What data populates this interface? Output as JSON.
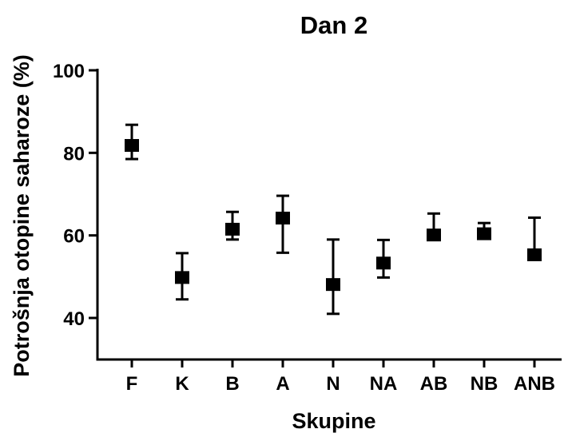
{
  "chart_data": {
    "type": "scatter",
    "title": "Dan 2",
    "xlabel": "Skupine",
    "ylabel": "Potrošnja otopine saharoze (%)",
    "categories": [
      "F",
      "K",
      "B",
      "A",
      "N",
      "NA",
      "AB",
      "NB",
      "ANB"
    ],
    "values": [
      81.8,
      49.8,
      61.5,
      64.2,
      48.1,
      53.3,
      60.1,
      60.4,
      55.3
    ],
    "error_low": [
      78.5,
      44.5,
      59.0,
      55.8,
      41.0,
      49.8,
      59.5,
      59.8,
      54.6
    ],
    "error_high": [
      86.8,
      55.7,
      65.7,
      69.6,
      59.0,
      58.9,
      65.3,
      63.0,
      64.3
    ],
    "ylim": [
      30,
      100
    ],
    "yticks": [
      40,
      60,
      80,
      100
    ],
    "grid": false,
    "legend": "none"
  }
}
